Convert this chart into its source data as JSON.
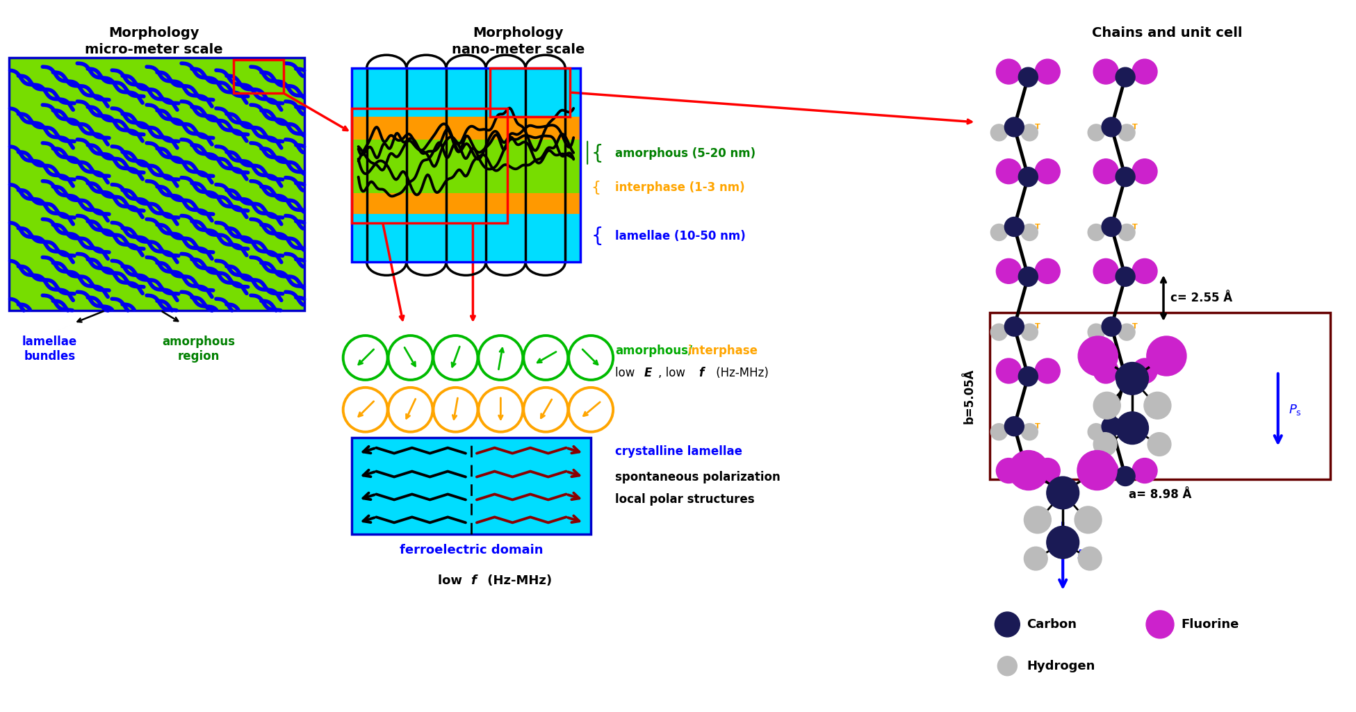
{
  "col1_title": "Morphology\nmicro-meter scale",
  "col2_title": "Morphology\nnano-meter scale",
  "col3_title": "Chains and unit cell",
  "micro_bg": "#77dd00",
  "micro_border": "#0000cc",
  "lamellae_color": "#0000ee",
  "cyan_color": "#00ddff",
  "orange_color": "#ff9900",
  "green_color": "#77dd00",
  "label_amorphous": "amorphous (5-20 nm)",
  "label_interphase": "interphase (1-3 nm)",
  "label_lamellae": "lamellae (10-50 nm)",
  "label_low": "low ",
  "label_E": "E",
  "label_low2": ", low ",
  "label_f": "f",
  "label_hz": " (Hz-MHz)",
  "label_crystalline": "crystalline lamellae",
  "label_spontaneous": "spontaneous polarization",
  "label_local": "local polar structures",
  "label_ferroelectric": "ferroelectric domain",
  "label_low_f_bold": "low ",
  "label_f_italic": "f",
  "label_hz2": " (Hz-MHz)",
  "label_lamellae_bundles": "lamellae\nbundles",
  "label_amorphous_region": "amorphous\nregion",
  "label_c": "c= 2.55 Å",
  "label_b": "b=5.05Å",
  "label_a": "a= 8.98 Å",
  "label_carbon": "Carbon",
  "label_fluorine": "Fluorine",
  "label_hydrogen": "Hydrogen",
  "carbon_color": "#1a1a55",
  "fluorine_color": "#cc22cc",
  "hydrogen_color": "#bbbbbb",
  "dark_red": "#8b0000"
}
